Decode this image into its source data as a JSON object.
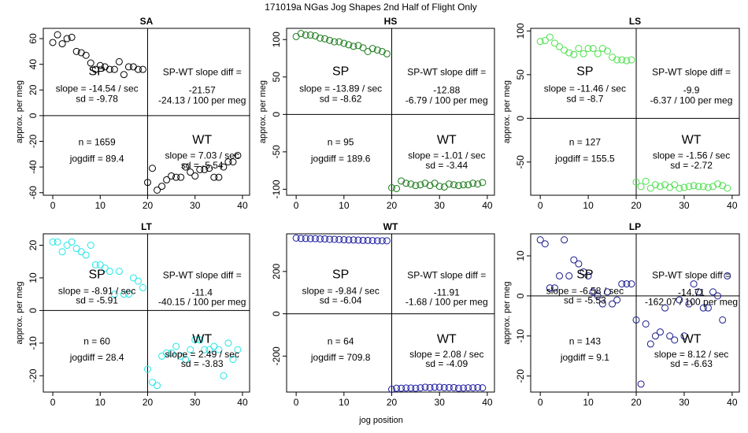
{
  "title": "171019a   NGas Jog Shapes 2nd Half of Flight Only",
  "xlabel": "jog position",
  "chart_data": [
    {
      "type": "scatter",
      "name": "SA",
      "color": "#000000",
      "xlabel": "",
      "ylabel": "approx. per meg",
      "xlim": [
        -2,
        41.5
      ],
      "ylim": [
        -62,
        68
      ],
      "xticks": [
        0,
        10,
        20,
        30,
        40
      ],
      "yticks": [
        -60,
        -40,
        -20,
        0,
        20,
        40,
        60
      ],
      "x": [
        0,
        1,
        2,
        3,
        4,
        5,
        6,
        7,
        8,
        9,
        10,
        11,
        12,
        13,
        14,
        15,
        16,
        17,
        18,
        19,
        20,
        21,
        22,
        23,
        24,
        25,
        26,
        27,
        28,
        29,
        30,
        31,
        32,
        33,
        34,
        35,
        36,
        37,
        38,
        39
      ],
      "y": [
        57,
        63,
        56,
        60,
        61,
        50,
        49,
        47,
        41,
        36,
        39,
        38,
        36,
        36,
        42,
        32,
        38,
        38,
        36,
        36,
        -52,
        -41,
        -58,
        -55,
        -50,
        -47,
        -48,
        -48,
        -40,
        -44,
        -47,
        -42,
        -42,
        -41,
        -48,
        -48,
        -40,
        -36,
        -36,
        -31
      ],
      "sp_label": "SP",
      "wt_label": "WT",
      "sp_slope": "slope = -14.54 / sec",
      "sp_sd": "sd = -9.78",
      "wt_slope": "slope = 7.03 / sec",
      "wt_sd": "sd = -5.54",
      "diff_label": "SP-WT slope diff =",
      "diff_val": "-21.57",
      "diff_per": "-24.13 / 100 per meg",
      "n": "n = 1659",
      "jogdiff": "jogdiff = 89.4"
    },
    {
      "type": "scatter",
      "name": "HS",
      "color": "#1a7a1a",
      "xlabel": "",
      "ylabel": "approx. per meg",
      "xlim": [
        -2,
        41.5
      ],
      "ylim": [
        -108,
        115
      ],
      "xticks": [
        0,
        10,
        20,
        30,
        40
      ],
      "yticks": [
        -100,
        -50,
        0,
        50,
        100
      ],
      "x": [
        0,
        1,
        2,
        3,
        4,
        5,
        6,
        7,
        8,
        9,
        10,
        11,
        12,
        13,
        14,
        15,
        16,
        17,
        18,
        19,
        20,
        21,
        22,
        23,
        24,
        25,
        26,
        27,
        28,
        29,
        30,
        31,
        32,
        33,
        34,
        35,
        36,
        37,
        38,
        39
      ],
      "y": [
        104,
        108,
        106,
        106,
        105,
        102,
        101,
        99,
        97,
        97,
        95,
        93,
        91,
        92,
        89,
        84,
        88,
        86,
        84,
        81,
        -98,
        -99,
        -89,
        -92,
        -93,
        -95,
        -94,
        -92,
        -95,
        -92,
        -96,
        -97,
        -93,
        -94,
        -95,
        -94,
        -94,
        -92,
        -93,
        -91
      ],
      "sp_label": "SP",
      "wt_label": "WT",
      "sp_slope": "slope = -13.89 / sec",
      "sp_sd": "sd = -8.62",
      "wt_slope": "slope = -1.01 / sec",
      "wt_sd": "sd = -3.44",
      "diff_label": "SP-WT slope diff =",
      "diff_val": "-12.88",
      "diff_per": "-6.79 / 100 per meg",
      "n": "n = 95",
      "jogdiff": "jogdiff = 189.6"
    },
    {
      "type": "scatter",
      "name": "LS",
      "color": "#4ee04e",
      "xlabel": "",
      "ylabel": "approx. per meg",
      "xlim": [
        -2,
        41.5
      ],
      "ylim": [
        -88,
        103
      ],
      "xticks": [
        0,
        10,
        20,
        30,
        40
      ],
      "yticks": [
        -50,
        0,
        50,
        100
      ],
      "x": [
        0,
        1,
        2,
        3,
        4,
        5,
        6,
        7,
        8,
        9,
        10,
        11,
        12,
        13,
        14,
        15,
        16,
        17,
        18,
        19,
        20,
        21,
        22,
        23,
        24,
        25,
        26,
        27,
        28,
        29,
        30,
        31,
        32,
        33,
        34,
        35,
        36,
        37,
        38,
        39
      ],
      "y": [
        88,
        89,
        93,
        86,
        82,
        78,
        75,
        73,
        80,
        74,
        80,
        80,
        74,
        80,
        77,
        70,
        67,
        67,
        66,
        67,
        -73,
        -78,
        -72,
        -80,
        -76,
        -78,
        -76,
        -79,
        -76,
        -80,
        -79,
        -78,
        -77,
        -78,
        -78,
        -79,
        -78,
        -75,
        -77,
        -80
      ],
      "sp_label": "SP",
      "wt_label": "WT",
      "sp_slope": "slope = -11.46 / sec",
      "sp_sd": "sd = -8.7",
      "wt_slope": "slope = -1.56 / sec",
      "wt_sd": "sd = -2.72",
      "diff_label": "SP-WT slope diff =",
      "diff_val": "-9.9",
      "diff_per": "-6.37 / 100 per meg",
      "n": "n = 127",
      "jogdiff": "jogdiff = 155.5"
    },
    {
      "type": "scatter",
      "name": "LT",
      "color": "#22e6e6",
      "xlabel": "",
      "ylabel": "approx. per meg",
      "xlim": [
        -2,
        41.5
      ],
      "ylim": [
        -25,
        23.5
      ],
      "xticks": [
        0,
        10,
        20,
        30,
        40
      ],
      "yticks": [
        -20,
        -10,
        0,
        10,
        20
      ],
      "x": [
        0,
        1,
        2,
        3,
        4,
        5,
        6,
        7,
        8,
        9,
        10,
        11,
        12,
        13,
        14,
        15,
        16,
        17,
        18,
        19,
        20,
        21,
        22,
        23,
        24,
        25,
        26,
        27,
        28,
        29,
        30,
        31,
        32,
        33,
        34,
        35,
        36,
        37,
        38,
        39
      ],
      "y": [
        21,
        21,
        18,
        20,
        21,
        19,
        18,
        17,
        20,
        14,
        14,
        13,
        12,
        5,
        12,
        5,
        5,
        10,
        9,
        7,
        -18,
        -22,
        -23,
        -14,
        -13,
        -13,
        -11,
        -14,
        -15,
        -12,
        -9,
        -9,
        -12,
        -12,
        -11,
        -12,
        -20,
        -10,
        -15,
        -12
      ],
      "sp_label": "SP",
      "wt_label": "WT",
      "sp_slope": "slope = -8.91 / sec",
      "sp_sd": "sd = -5.91",
      "wt_slope": "slope = 2.49 / sec",
      "wt_sd": "sd = -3.83",
      "diff_label": "SP-WT slope diff =",
      "diff_val": "-11.4",
      "diff_per": "-40.15 / 100 per meg",
      "n": "n = 60",
      "jogdiff": "jogdiff = 28.4"
    },
    {
      "type": "scatter",
      "name": "WT",
      "color": "#1a1aa0",
      "xlabel": "jog position",
      "ylabel": "",
      "xlim": [
        -2,
        41.5
      ],
      "ylim": [
        -370,
        378
      ],
      "xticks": [
        0,
        10,
        20,
        30,
        40
      ],
      "yticks": [
        -200,
        0,
        200
      ],
      "x": [
        0,
        1,
        2,
        3,
        4,
        5,
        6,
        7,
        8,
        9,
        10,
        11,
        12,
        13,
        14,
        15,
        16,
        17,
        18,
        19,
        20,
        21,
        22,
        23,
        24,
        25,
        26,
        27,
        28,
        29,
        30,
        31,
        32,
        33,
        34,
        35,
        36,
        37,
        38,
        39
      ],
      "y": [
        358,
        356,
        356,
        355,
        355,
        354,
        354,
        352,
        352,
        351,
        350,
        349,
        349,
        348,
        347,
        347,
        346,
        345,
        345,
        345,
        -357,
        -352,
        -352,
        -351,
        -351,
        -352,
        -350,
        -347,
        -349,
        -347,
        -347,
        -349,
        -349,
        -349,
        -352,
        -351,
        -350,
        -350,
        -349,
        -350
      ],
      "sp_label": "SP",
      "wt_label": "WT",
      "sp_slope": "slope = -9.84 / sec",
      "sp_sd": "sd = -6.04",
      "wt_slope": "slope = 2.08 / sec",
      "wt_sd": "sd = -4.09",
      "diff_label": "SP-WT slope diff =",
      "diff_val": "-11.91",
      "diff_per": "-1.68 / 100 per meg",
      "n": "n = 64",
      "jogdiff": "jogdiff = 709.8"
    },
    {
      "type": "scatter",
      "name": "LP",
      "color": "#1a1a8c",
      "xlabel": "",
      "ylabel": "approx. per meg",
      "xlim": [
        -2,
        41.5
      ],
      "ylim": [
        -24,
        15.5
      ],
      "xticks": [
        0,
        10,
        20,
        30,
        40
      ],
      "yticks": [
        -20,
        -10,
        0,
        10
      ],
      "x": [
        0,
        1,
        2,
        3,
        4,
        5,
        6,
        7,
        8,
        9,
        10,
        11,
        12,
        13,
        14,
        15,
        16,
        17,
        18,
        19,
        20,
        21,
        22,
        23,
        24,
        25,
        26,
        27,
        28,
        29,
        30,
        31,
        32,
        33,
        34,
        35,
        36,
        37,
        38,
        39
      ],
      "y": [
        14,
        13,
        2,
        2,
        5,
        14,
        5,
        9,
        8,
        6,
        5,
        1,
        0,
        -2,
        1,
        -2,
        -1,
        3,
        3,
        3,
        -6,
        -22,
        -7,
        -12,
        -10,
        -9,
        -3,
        -10,
        -11,
        -1,
        -10,
        -2,
        3,
        1,
        -3,
        -3,
        1,
        0,
        -6,
        5
      ],
      "sp_label": "SP",
      "wt_label": "WT",
      "sp_slope": "slope = -6.58 / sec",
      "sp_sd": "sd = -5.53",
      "wt_slope": "slope = 8.12 / sec",
      "wt_sd": "sd = -6.63",
      "diff_label": "SP-WT slope diff =",
      "diff_val": "-14.71",
      "diff_per": "-162.07 / 100 per meg",
      "n": "n = 143",
      "jogdiff": "jogdiff = 9.1"
    }
  ]
}
